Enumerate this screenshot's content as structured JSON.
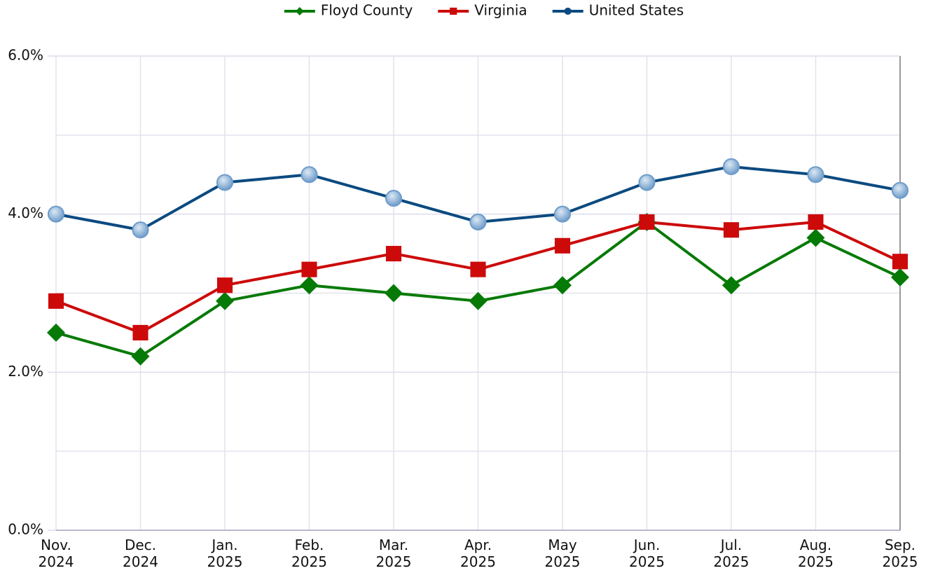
{
  "chart_data": {
    "type": "line",
    "categories": [
      "Nov.\n2024",
      "Dec.\n2024",
      "Jan.\n2025",
      "Feb.\n2025",
      "Mar.\n2025",
      "Apr.\n2025",
      "May\n2025",
      "Jun.\n2025",
      "Jul.\n2025",
      "Aug.\n2025",
      "Sep.\n2025"
    ],
    "series": [
      {
        "name": "Floyd County",
        "color": "#067a06",
        "marker": "diamond",
        "values": [
          2.5,
          2.2,
          2.9,
          3.1,
          3.0,
          2.9,
          3.1,
          3.9,
          3.1,
          3.7,
          3.2
        ]
      },
      {
        "name": "Virginia",
        "color": "#cc0a0a",
        "marker": "square",
        "values": [
          2.9,
          2.5,
          3.1,
          3.3,
          3.5,
          3.3,
          3.6,
          3.9,
          3.8,
          3.9,
          3.4
        ]
      },
      {
        "name": "United States",
        "color": "#0b4a80",
        "marker": "circle",
        "values": [
          4.0,
          3.8,
          4.4,
          4.5,
          4.2,
          3.9,
          4.0,
          4.4,
          4.6,
          4.5,
          4.3
        ]
      }
    ],
    "ylim": [
      0,
      6
    ],
    "yticks": [
      {
        "value": 0,
        "label": "0.0%"
      },
      {
        "value": 2,
        "label": "2.0%"
      },
      {
        "value": 4,
        "label": "4.0%"
      },
      {
        "value": 6,
        "label": "6.0%"
      }
    ],
    "minor_yticks": [
      1,
      3,
      5
    ],
    "grid": true,
    "legend": "top"
  }
}
